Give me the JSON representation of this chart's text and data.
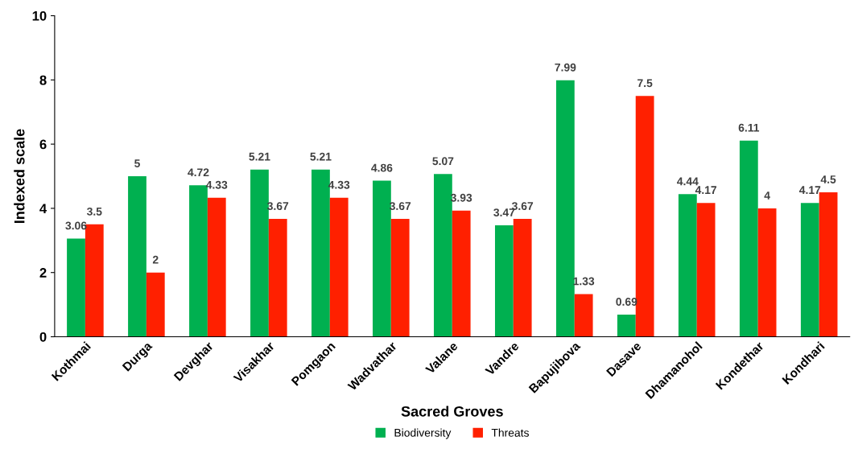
{
  "chart_data": {
    "type": "bar",
    "xlabel": "Sacred Groves",
    "ylabel": "Indexed scale",
    "categories": [
      "Kothmai",
      "Durga",
      "Devghar",
      "Visakhar",
      "Pomgaon",
      "Wadvathar",
      "Valane",
      "Vandre",
      "Bapujibova",
      "Dasave",
      "Dhamanohol",
      "Kondethar",
      "Kondhari"
    ],
    "series": [
      {
        "name": "Biodiversity",
        "color": "#00b050",
        "values": [
          3.06,
          5,
          4.72,
          5.21,
          5.21,
          4.86,
          5.07,
          3.47,
          7.99,
          0.69,
          4.44,
          6.11,
          4.17
        ]
      },
      {
        "name": "Threats",
        "color": "#ff2000",
        "values": [
          3.5,
          2,
          4.33,
          3.67,
          4.33,
          3.67,
          3.93,
          3.67,
          1.33,
          7.5,
          4.17,
          4,
          4.5
        ]
      }
    ],
    "ylim": [
      0,
      10
    ],
    "yticks": [
      0,
      2,
      4,
      6,
      8,
      10
    ],
    "grid": false,
    "legend": "bottom",
    "data_labels": true
  }
}
